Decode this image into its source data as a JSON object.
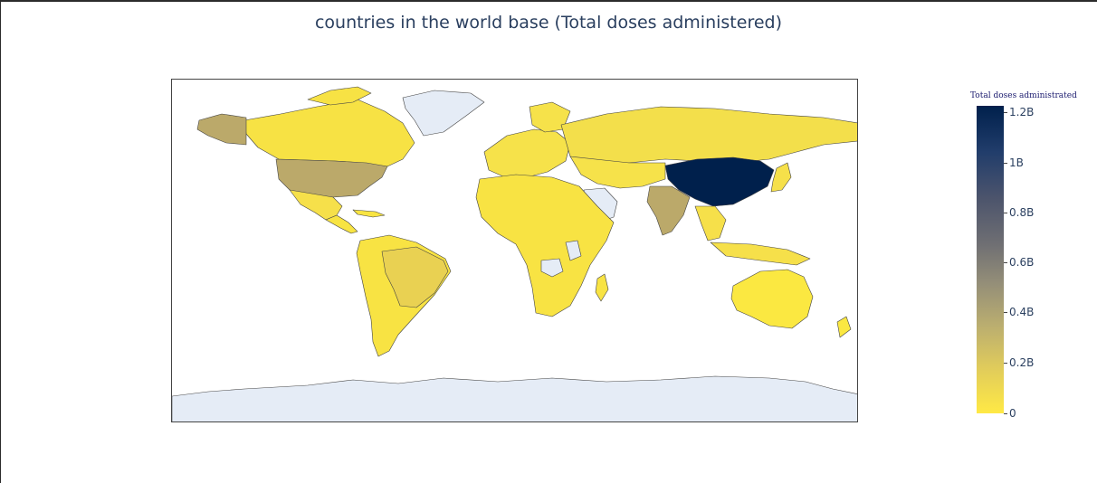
{
  "title": "countries in the world base (Total doses administered)",
  "colorbar": {
    "title": "Total doses administrated",
    "ticks": [
      {
        "label": "1.2B",
        "value": 1200000000
      },
      {
        "label": "1B",
        "value": 1000000000
      },
      {
        "label": "0.8B",
        "value": 800000000
      },
      {
        "label": "0.6B",
        "value": 600000000
      },
      {
        "label": "0.4B",
        "value": 400000000
      },
      {
        "label": "0.2B",
        "value": 200000000
      },
      {
        "label": "0",
        "value": 0
      }
    ],
    "range": [
      0,
      1200000000
    ],
    "colorscale": [
      "#ffe945",
      "#e2cd5a",
      "#bcaf6f",
      "#958f78",
      "#6f6f73",
      "#4c546c",
      "#213d6b",
      "#00204c"
    ]
  },
  "colors": {
    "no_data": "#e5ecf6",
    "border": "#444444",
    "title": "#2a3f5f"
  },
  "chart_data": {
    "type": "choropleth",
    "projection": "equirectangular",
    "metric": "Total doses administered",
    "regions": [
      {
        "name": "China",
        "value": 1200000000
      },
      {
        "name": "India",
        "value": 300000000
      },
      {
        "name": "United States",
        "value": 330000000
      },
      {
        "name": "Brazil",
        "value": 110000000
      },
      {
        "name": "Canada",
        "value": 40000000
      },
      {
        "name": "Russia",
        "value": 60000000
      },
      {
        "name": "Alaska (United States)",
        "value": 330000000
      },
      {
        "name": "Mexico",
        "value": 60000000
      },
      {
        "name": "Indonesia",
        "value": 60000000
      },
      {
        "name": "Australia",
        "value": 15000000
      },
      {
        "name": "Greenland",
        "value": null
      },
      {
        "name": "Antarctica",
        "value": null
      },
      {
        "name": "Saudi Arabia",
        "value": null
      },
      {
        "name": "Democratic Republic of the Congo",
        "value": null
      },
      {
        "name": "Tanzania",
        "value": null
      }
    ]
  }
}
